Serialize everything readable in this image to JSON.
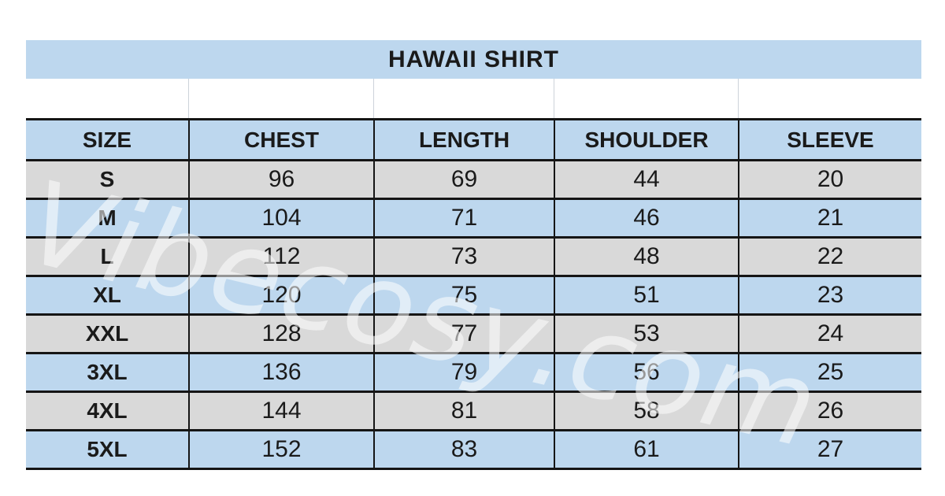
{
  "title": "HAWAII SHIRT",
  "watermark": {
    "text": "Vibecosy.com",
    "color": "#ffffff",
    "opacity": 0.55
  },
  "colors": {
    "title_bar_blue": "#bdd7ee",
    "row_blue": "#bdd7ee",
    "row_gray": "#d9d9d9",
    "border_black": "#151515",
    "text_black": "#1a1a1a"
  },
  "table": {
    "columns": [
      {
        "key": "size",
        "label": "SIZE"
      },
      {
        "key": "chest",
        "label": "CHEST"
      },
      {
        "key": "length",
        "label": "LENGTH"
      },
      {
        "key": "shoulder",
        "label": "SHOULDER"
      },
      {
        "key": "sleeve",
        "label": "SLEEVE"
      }
    ],
    "rows": [
      {
        "size": "S",
        "chest": "96",
        "length": "69",
        "shoulder": "44",
        "sleeve": "20"
      },
      {
        "size": "M",
        "chest": "104",
        "length": "71",
        "shoulder": "46",
        "sleeve": "21"
      },
      {
        "size": "L",
        "chest": "112",
        "length": "73",
        "shoulder": "48",
        "sleeve": "22"
      },
      {
        "size": "XL",
        "chest": "120",
        "length": "75",
        "shoulder": "51",
        "sleeve": "23"
      },
      {
        "size": "XXL",
        "chest": "128",
        "length": "77",
        "shoulder": "53",
        "sleeve": "24"
      },
      {
        "size": "3XL",
        "chest": "136",
        "length": "79",
        "shoulder": "56",
        "sleeve": "25"
      },
      {
        "size": "4XL",
        "chest": "144",
        "length": "81",
        "shoulder": "58",
        "sleeve": "26"
      },
      {
        "size": "5XL",
        "chest": "152",
        "length": "83",
        "shoulder": "61",
        "sleeve": "27"
      }
    ]
  }
}
